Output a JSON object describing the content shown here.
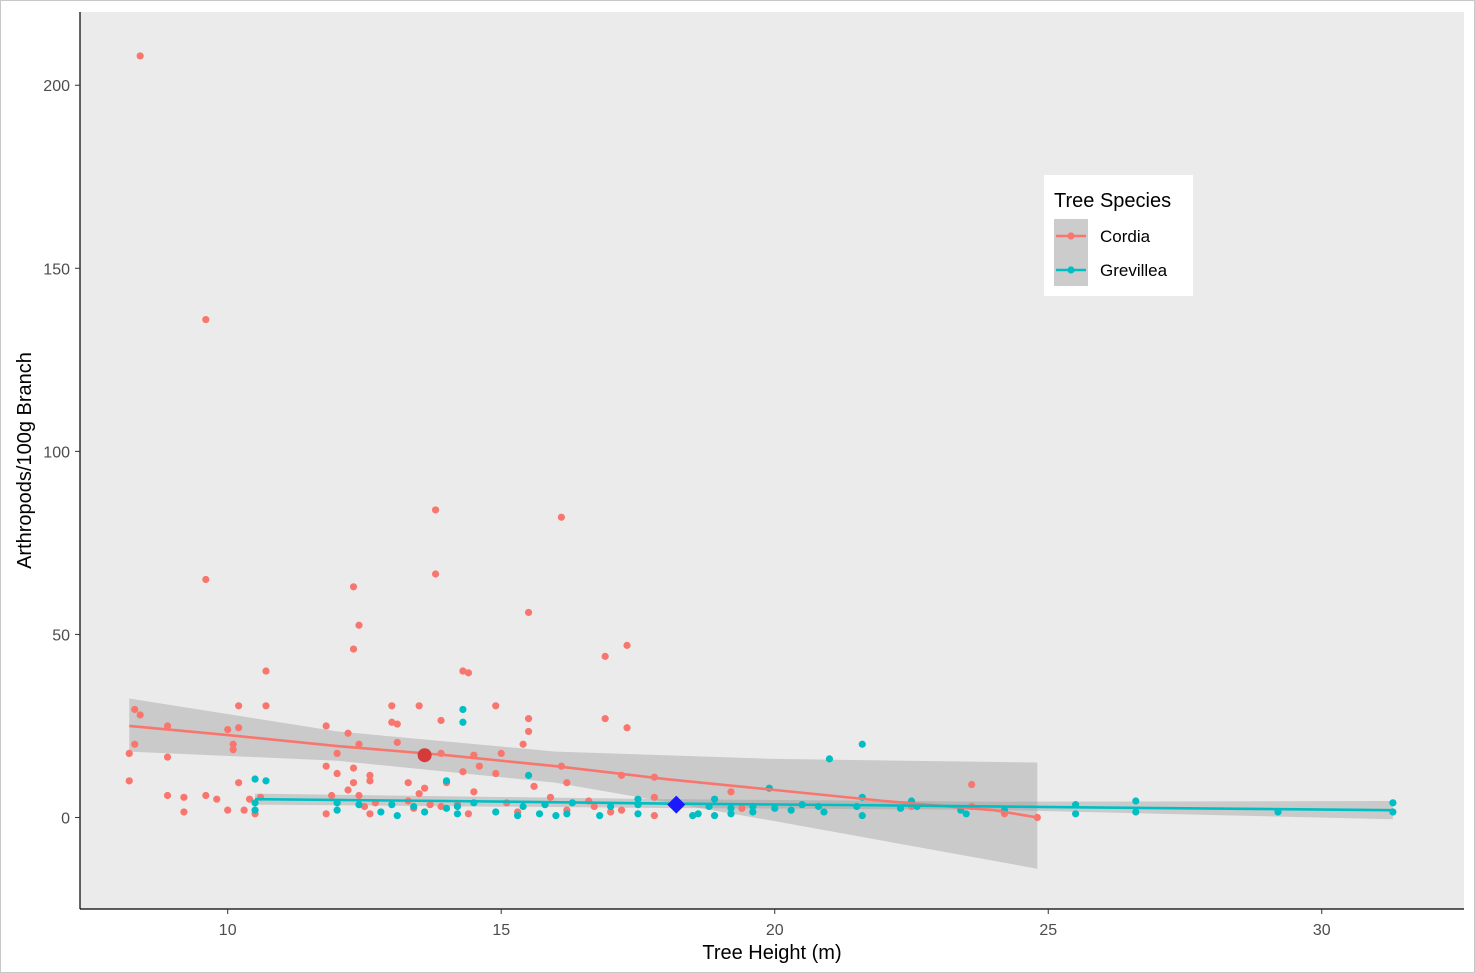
{
  "chart_data": {
    "type": "scatter",
    "xlabel": "Tree Height (m)",
    "ylabel": "Arthropods/100g Branch",
    "xlim": [
      7.3,
      32.6
    ],
    "ylim": [
      -25,
      220
    ],
    "x_ticks": [
      10,
      15,
      20,
      25,
      30
    ],
    "y_ticks": [
      0,
      50,
      100,
      150,
      200
    ],
    "grid": false,
    "background": "#ebebeb",
    "legend": {
      "title": "Tree Species",
      "placement": "top-right"
    },
    "series": [
      {
        "name": "Cordia",
        "color": "#f8766d",
        "points": [
          [
            8.4,
            208
          ],
          [
            9.6,
            136
          ],
          [
            9.6,
            65
          ],
          [
            13.8,
            84
          ],
          [
            13.8,
            66.5
          ],
          [
            16.1,
            82
          ],
          [
            12.3,
            63
          ],
          [
            12.4,
            52.5
          ],
          [
            12.3,
            46
          ],
          [
            15.5,
            56
          ],
          [
            17.3,
            47
          ],
          [
            16.9,
            44
          ],
          [
            10.7,
            40
          ],
          [
            14.3,
            40
          ],
          [
            14.4,
            39.5
          ],
          [
            10.2,
            30.5
          ],
          [
            10.7,
            30.5
          ],
          [
            13.0,
            30.5
          ],
          [
            13.5,
            30.5
          ],
          [
            14.9,
            30.5
          ],
          [
            8.3,
            29.5
          ],
          [
            8.4,
            28
          ],
          [
            13.0,
            26
          ],
          [
            13.1,
            25.5
          ],
          [
            13.9,
            26.5
          ],
          [
            16.9,
            27
          ],
          [
            15.5,
            27
          ],
          [
            8.9,
            25
          ],
          [
            10.0,
            24
          ],
          [
            10.2,
            24.5
          ],
          [
            11.8,
            25
          ],
          [
            12.2,
            23
          ],
          [
            15.5,
            23.5
          ],
          [
            17.3,
            24.5
          ],
          [
            8.3,
            20
          ],
          [
            10.1,
            20
          ],
          [
            10.1,
            18.5
          ],
          [
            8.2,
            17.5
          ],
          [
            8.9,
            16.5
          ],
          [
            12.0,
            17.5
          ],
          [
            13.1,
            20.5
          ],
          [
            12.4,
            20
          ],
          [
            13.9,
            17.5
          ],
          [
            14.5,
            17
          ],
          [
            15.0,
            17.5
          ],
          [
            15.4,
            20
          ],
          [
            16.1,
            14
          ],
          [
            14.6,
            14
          ],
          [
            11.8,
            14
          ],
          [
            13.6,
            17
          ],
          [
            12.0,
            12
          ],
          [
            12.3,
            13.5
          ],
          [
            12.6,
            11.5
          ],
          [
            14.3,
            12.5
          ],
          [
            14.9,
            12
          ],
          [
            17.2,
            11.5
          ],
          [
            17.8,
            11
          ],
          [
            8.2,
            10
          ],
          [
            10.2,
            9.5
          ],
          [
            12.3,
            9.5
          ],
          [
            12.6,
            10
          ],
          [
            13.3,
            9.5
          ],
          [
            13.6,
            8
          ],
          [
            14.0,
            9.5
          ],
          [
            15.6,
            8.5
          ],
          [
            16.2,
            9.5
          ],
          [
            19.2,
            7
          ],
          [
            23.6,
            9
          ],
          [
            8.9,
            6
          ],
          [
            9.6,
            6
          ],
          [
            10.4,
            5
          ],
          [
            11.9,
            6
          ],
          [
            12.2,
            7.5
          ],
          [
            12.4,
            6
          ],
          [
            13.5,
            6.5
          ],
          [
            14.5,
            7
          ],
          [
            15.9,
            5.5
          ],
          [
            16.6,
            4.5
          ],
          [
            17.8,
            5.5
          ],
          [
            9.2,
            5.5
          ],
          [
            9.8,
            5
          ],
          [
            10.6,
            5.5
          ],
          [
            12.7,
            4
          ],
          [
            13.3,
            4.5
          ],
          [
            14.2,
            3.5
          ],
          [
            15.1,
            4
          ],
          [
            10.0,
            2
          ],
          [
            10.3,
            2
          ],
          [
            11.8,
            1
          ],
          [
            12.5,
            3
          ],
          [
            12.6,
            1
          ],
          [
            13.4,
            2.5
          ],
          [
            13.7,
            3.5
          ],
          [
            14.4,
            1
          ],
          [
            15.3,
            1.5
          ],
          [
            16.2,
            2
          ],
          [
            17.0,
            1.5
          ],
          [
            17.8,
            0.5
          ],
          [
            9.2,
            1.5
          ],
          [
            10.5,
            1
          ],
          [
            13.9,
            3
          ],
          [
            16.7,
            3
          ],
          [
            17.2,
            2
          ],
          [
            19.4,
            2.5
          ],
          [
            22.5,
            3
          ],
          [
            23.6,
            3
          ],
          [
            24.2,
            1
          ],
          [
            24.8,
            0
          ]
        ],
        "trend": [
          [
            8.2,
            25
          ],
          [
            10,
            22.5
          ],
          [
            12,
            19.5
          ],
          [
            14,
            17
          ],
          [
            16,
            14
          ],
          [
            18,
            10.5
          ],
          [
            20,
            7.5
          ],
          [
            22,
            4.5
          ],
          [
            24,
            2
          ],
          [
            24.8,
            0
          ]
        ],
        "band": {
          "upper": [
            [
              8.2,
              32.5
            ],
            [
              12,
              23.5
            ],
            [
              16,
              18
            ],
            [
              20,
              16
            ],
            [
              24.8,
              15
            ]
          ],
          "lower": [
            [
              8.2,
              18
            ],
            [
              12,
              15.5
            ],
            [
              16,
              9.5
            ],
            [
              20,
              -1
            ],
            [
              24.8,
              -14
            ]
          ]
        },
        "mean_marker": [
          13.6,
          17
        ]
      },
      {
        "name": "Grevillea",
        "color": "#00bfc4",
        "points": [
          [
            21.6,
            20
          ],
          [
            21.0,
            16
          ],
          [
            14.3,
            29.5
          ],
          [
            14.3,
            26
          ],
          [
            15.5,
            11.5
          ],
          [
            10.5,
            10.5
          ],
          [
            10.7,
            10
          ],
          [
            14.0,
            10
          ],
          [
            19.9,
            8
          ],
          [
            26.6,
            4.5
          ],
          [
            31.3,
            4
          ],
          [
            21.6,
            5.5
          ],
          [
            17.5,
            5
          ],
          [
            18.9,
            5
          ],
          [
            20.5,
            3.5
          ],
          [
            22.5,
            4.5
          ],
          [
            25.5,
            3.5
          ],
          [
            10.5,
            4
          ],
          [
            12.0,
            4
          ],
          [
            12.4,
            3.5
          ],
          [
            13.0,
            3.5
          ],
          [
            13.4,
            3
          ],
          [
            14.0,
            2.5
          ],
          [
            14.2,
            3
          ],
          [
            14.5,
            4
          ],
          [
            15.4,
            3
          ],
          [
            15.8,
            3.5
          ],
          [
            16.3,
            4
          ],
          [
            17.0,
            3
          ],
          [
            17.5,
            3.5
          ],
          [
            18.2,
            3.5
          ],
          [
            18.8,
            3
          ],
          [
            19.2,
            2.5
          ],
          [
            19.6,
            3
          ],
          [
            20.0,
            2.5
          ],
          [
            20.8,
            3
          ],
          [
            21.5,
            3
          ],
          [
            22.6,
            3
          ],
          [
            23.5,
            1
          ],
          [
            24.2,
            2
          ],
          [
            26.6,
            1.5
          ],
          [
            29.2,
            1.5
          ],
          [
            31.3,
            1.5
          ],
          [
            10.5,
            2
          ],
          [
            12.0,
            2
          ],
          [
            12.8,
            1.5
          ],
          [
            13.1,
            0.5
          ],
          [
            13.6,
            1.5
          ],
          [
            14.2,
            1
          ],
          [
            14.9,
            1.5
          ],
          [
            15.3,
            0.5
          ],
          [
            15.7,
            1
          ],
          [
            16.0,
            0.5
          ],
          [
            16.2,
            1
          ],
          [
            16.8,
            0.5
          ],
          [
            17.5,
            1
          ],
          [
            18.5,
            0.5
          ],
          [
            18.9,
            0.5
          ],
          [
            19.2,
            1
          ],
          [
            19.6,
            1.5
          ],
          [
            20.3,
            2
          ],
          [
            20.9,
            1.5
          ],
          [
            21.6,
            0.5
          ],
          [
            22.3,
            2.5
          ],
          [
            23.4,
            2
          ],
          [
            25.5,
            1
          ],
          [
            18.6,
            1
          ],
          [
            18.2,
            3.5
          ]
        ],
        "trend": [
          [
            10.5,
            5
          ],
          [
            14,
            4.5
          ],
          [
            18,
            3.8
          ],
          [
            22,
            3.3
          ],
          [
            26,
            2.7
          ],
          [
            31.3,
            2
          ]
        ],
        "band": {
          "upper": [
            [
              10.5,
              6.5
            ],
            [
              18,
              5
            ],
            [
              24,
              4.3
            ],
            [
              31.3,
              4.5
            ]
          ],
          "lower": [
            [
              10.5,
              3.5
            ],
            [
              18,
              2.6
            ],
            [
              24,
              2.1
            ],
            [
              31.3,
              -0.5
            ]
          ]
        },
        "mean_marker": [
          18.2,
          3.5
        ]
      }
    ]
  }
}
